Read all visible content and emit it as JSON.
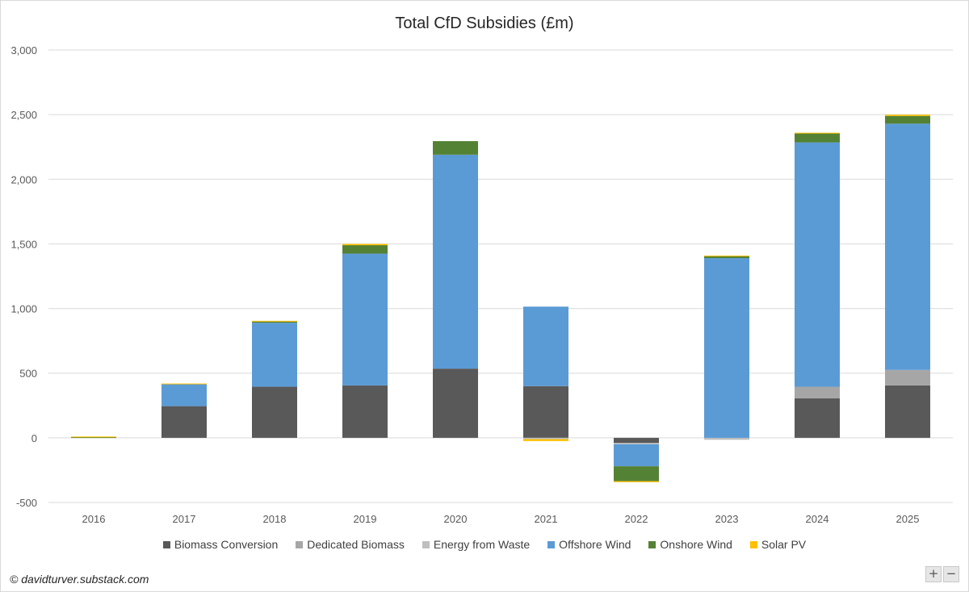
{
  "chart_data": {
    "type": "bar",
    "stacked": true,
    "title": "Total CfD Subsidies (£m)",
    "xlabel": "",
    "ylabel": "",
    "ylim": [
      -500,
      3000
    ],
    "yticks": [
      -500,
      0,
      500,
      1000,
      1500,
      2000,
      2500,
      3000
    ],
    "ytick_labels": [
      "-500",
      "0",
      "500",
      "1,000",
      "1,500",
      "2,000",
      "2,500",
      "3,000"
    ],
    "grid": true,
    "legend_position": "bottom",
    "categories": [
      "2016",
      "2017",
      "2018",
      "2019",
      "2020",
      "2021",
      "2022",
      "2023",
      "2024",
      "2025"
    ],
    "series": [
      {
        "name": "Biomass Conversion",
        "color": "#595959",
        "values": [
          0,
          245,
          395,
          405,
          535,
          400,
          -40,
          0,
          305,
          405
        ]
      },
      {
        "name": "Dedicated Biomass",
        "color": "#a6a6a6",
        "values": [
          0,
          0,
          0,
          0,
          0,
          0,
          0,
          0,
          90,
          120
        ]
      },
      {
        "name": "Energy from Waste",
        "color": "#bfbfbf",
        "values": [
          0,
          0,
          0,
          0,
          0,
          -10,
          -10,
          -15,
          0,
          0
        ]
      },
      {
        "name": "Offshore Wind",
        "color": "#5b9bd5",
        "values": [
          0,
          170,
          495,
          1020,
          1655,
          615,
          -170,
          1390,
          1890,
          1905
        ]
      },
      {
        "name": "Onshore Wind",
        "color": "#548235",
        "values": [
          5,
          0,
          10,
          65,
          105,
          0,
          -115,
          15,
          70,
          60
        ]
      },
      {
        "name": "Solar PV",
        "color": "#ffc000",
        "values": [
          5,
          5,
          5,
          10,
          0,
          -15,
          -8,
          5,
          5,
          10
        ]
      }
    ]
  },
  "credit": "© davidturver.substack.com",
  "zoom": {
    "in_label": "+",
    "out_label": "−"
  }
}
